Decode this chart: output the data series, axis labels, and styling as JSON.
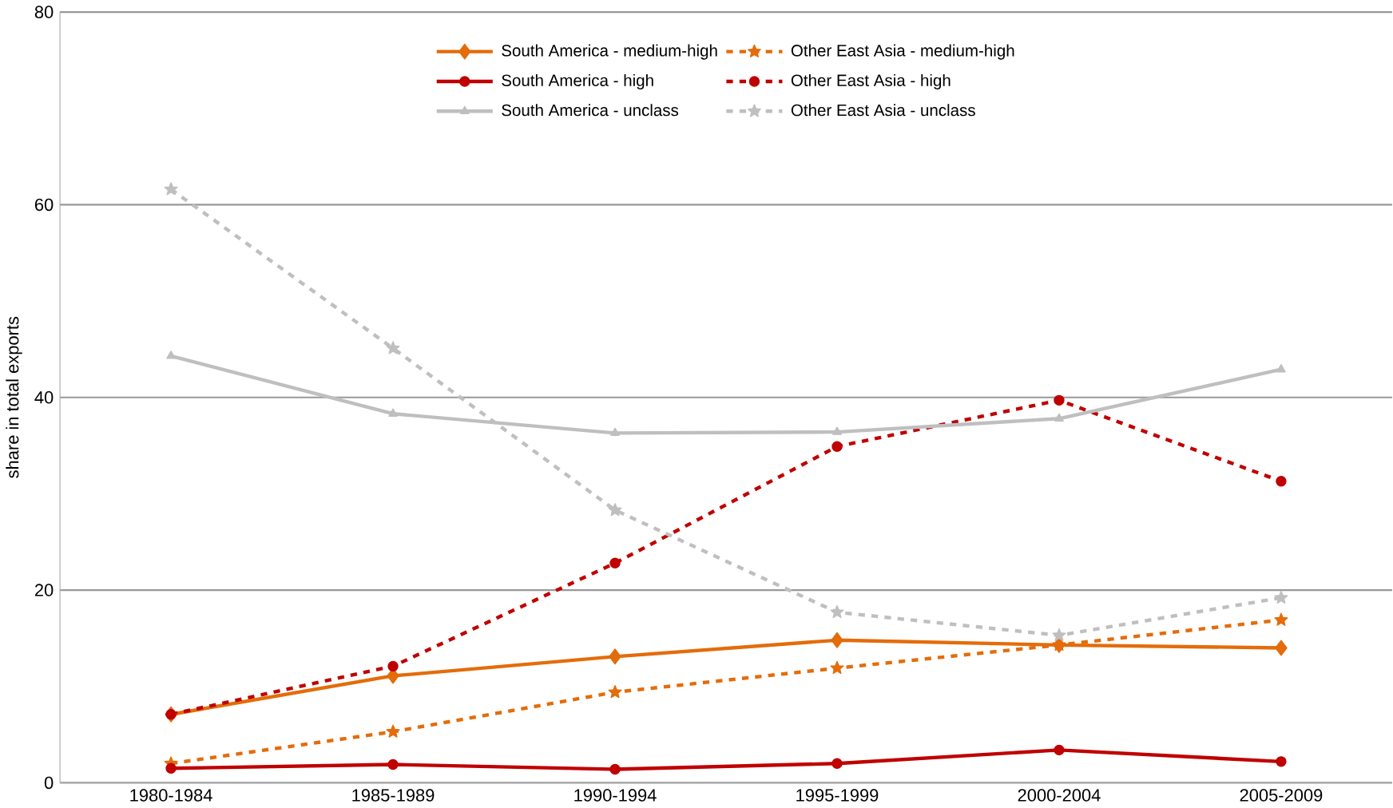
{
  "chart_data": {
    "type": "line",
    "ylabel": "share in total exports",
    "categories": [
      "1980-1984",
      "1985-1989",
      "1990-1994",
      "1995-1999",
      "2000-2004",
      "2005-2009"
    ],
    "ylim": [
      0,
      80
    ],
    "yticks": [
      0,
      20,
      40,
      60,
      80
    ],
    "grid": "y",
    "legend": "top",
    "series": [
      {
        "name": "South America - medium-high",
        "color": "#e46c0a",
        "marker": "diamond",
        "line_style": "solid",
        "values": [
          7.1,
          11.1,
          13.1,
          14.8,
          14.3,
          14.0
        ]
      },
      {
        "name": "Other East Asia - medium-high",
        "color": "#e46c0a",
        "marker": "star",
        "line_style": "dashed",
        "values": [
          2.0,
          5.3,
          9.4,
          11.9,
          14.3,
          16.9
        ]
      },
      {
        "name": "South America - high",
        "color": "#c00000",
        "marker": "circle",
        "line_style": "solid",
        "values": [
          1.5,
          1.9,
          1.4,
          2.0,
          3.4,
          2.2
        ]
      },
      {
        "name": "Other East Asia - high",
        "color": "#c00000",
        "marker": "circle",
        "line_style": "dashed",
        "values": [
          7.1,
          12.1,
          22.8,
          34.9,
          39.7,
          31.3
        ]
      },
      {
        "name": "South America - unclass",
        "color": "#bfbfbf",
        "marker": "triangle",
        "line_style": "solid",
        "values": [
          44.3,
          38.3,
          36.3,
          36.4,
          37.8,
          42.9
        ]
      },
      {
        "name": "Other East Asia - unclass",
        "color": "#bfbfbf",
        "marker": "star",
        "line_style": "dashed",
        "values": [
          61.6,
          45.1,
          28.3,
          17.7,
          15.3,
          19.2
        ]
      }
    ]
  }
}
